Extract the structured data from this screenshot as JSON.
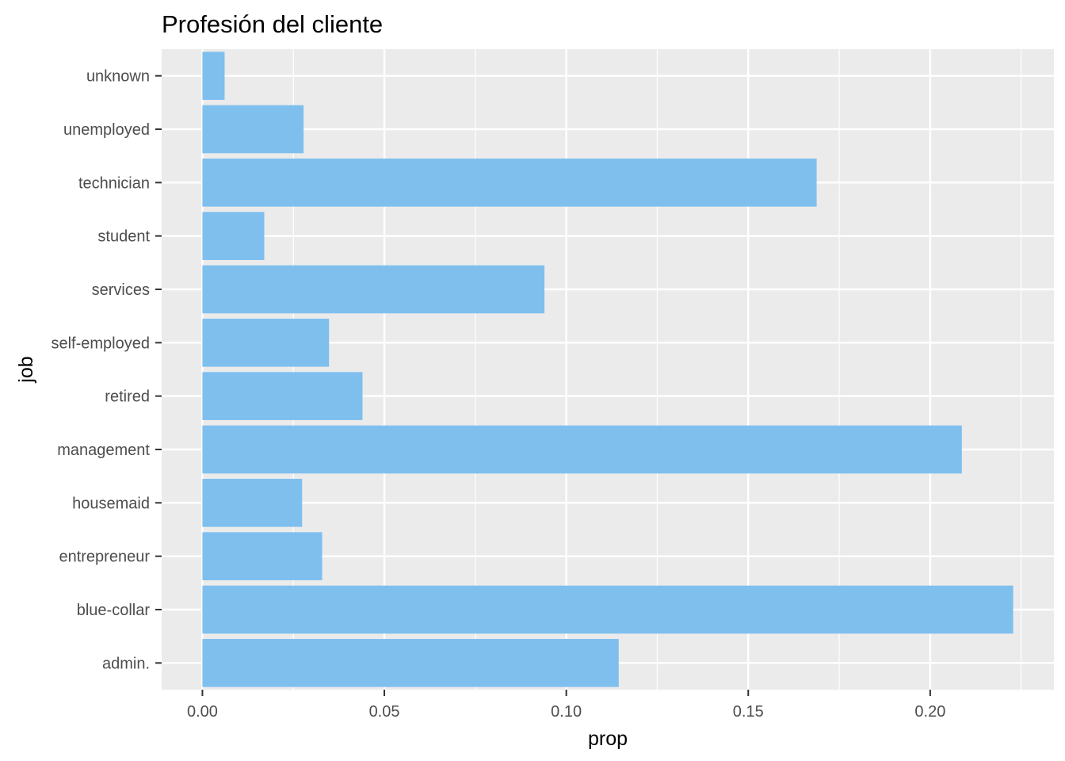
{
  "chart_data": {
    "type": "bar",
    "orientation": "horizontal",
    "title": "Profesión del cliente",
    "xlabel": "prop",
    "ylabel": "job",
    "categories": [
      "admin.",
      "blue-collar",
      "entrepreneur",
      "housemaid",
      "management",
      "retired",
      "self-employed",
      "services",
      "student",
      "technician",
      "unemployed",
      "unknown"
    ],
    "values": [
      0.1144,
      0.2228,
      0.0329,
      0.0274,
      0.2087,
      0.044,
      0.0348,
      0.094,
      0.017,
      0.1688,
      0.0278,
      0.0061
    ],
    "x_ticks": [
      "0.00",
      "0.05",
      "0.10",
      "0.15",
      "0.20"
    ],
    "xlim": [
      -0.0112,
      0.234
    ],
    "grid": true,
    "legend": "none",
    "colors": {
      "bar": "#7fbfee",
      "panel": "#ebebeb",
      "grid": "#ffffff",
      "tick_text": "#4d4d4d",
      "tick_mark": "#333333"
    }
  }
}
